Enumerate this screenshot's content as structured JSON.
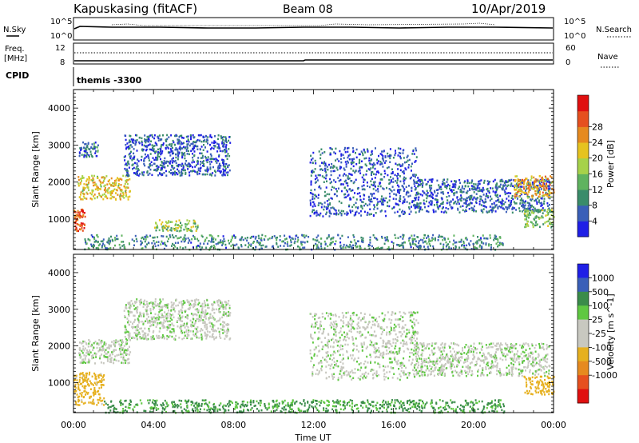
{
  "header": {
    "title": "Kapuskasing (fitACF)",
    "beam": "Beam 08",
    "date": "10/Apr/2019"
  },
  "noise_panel": {
    "left_label": "N.Sky",
    "right_label": "N.Search",
    "tick_top": "10^5",
    "tick_bottom": "10^0",
    "right_tick_top": "10^5",
    "right_tick_bottom": "10^0"
  },
  "freq_panel": {
    "left_label_line1": "Freq.",
    "left_label_line2": "[MHz]",
    "left_tick_top": "12",
    "left_tick_bottom": "8",
    "right_label": "Nave",
    "right_tick_top": "60",
    "right_tick_bottom": "0"
  },
  "cpid_panel": {
    "label": "CPID",
    "value": "themis -3300"
  },
  "colors": {
    "power": [
      "#1f1fe6",
      "#3a5fb8",
      "#3a8c6a",
      "#5fb35f",
      "#a6d24a",
      "#e6c31f",
      "#e68a1f",
      "#e6501f",
      "#e01010"
    ],
    "velocity": [
      "#e01010",
      "#e6501f",
      "#e68a1f",
      "#e6b01f",
      "#c8c8c0",
      "#c8c8c0",
      "#5fc842",
      "#3a8c4a",
      "#3a5fb8",
      "#1f1fe6"
    ]
  },
  "chart_data": [
    {
      "type": "heatmap",
      "name": "power",
      "xlabel": "",
      "ylabel": "Slant Range [km]",
      "xlim": [
        "00:00",
        "24:00"
      ],
      "ylim": [
        180,
        4500
      ],
      "y_ticks": [
        "1000",
        "2000",
        "3000",
        "4000"
      ],
      "colorbar_label": "Power [dB]",
      "colorbar_ticks": [
        "4",
        "8",
        "12",
        "16",
        "20",
        "24",
        "28"
      ],
      "colorbar_range": [
        0,
        30
      ],
      "echo_regions": [
        {
          "t_start": 0.2,
          "t_end": 2.8,
          "range_start": 1550,
          "range_end": 2200,
          "level_db": 18
        },
        {
          "t_start": 0.2,
          "t_end": 1.2,
          "range_start": 2700,
          "range_end": 3100,
          "level_db": 6
        },
        {
          "t_start": 2.5,
          "t_end": 7.8,
          "range_start": 2200,
          "range_end": 3300,
          "level_db": 5
        },
        {
          "t_start": 0.0,
          "t_end": 0.6,
          "range_start": 700,
          "range_end": 1300,
          "level_db": 26
        },
        {
          "t_start": 0.5,
          "t_end": 21.5,
          "range_start": 200,
          "range_end": 600,
          "level_db": 8
        },
        {
          "t_start": 4.0,
          "t_end": 6.2,
          "range_start": 700,
          "range_end": 1000,
          "level_db": 14
        },
        {
          "t_start": 11.8,
          "t_end": 17.2,
          "range_start": 1100,
          "range_end": 2950,
          "level_db": 5
        },
        {
          "t_start": 17.0,
          "t_end": 23.8,
          "range_start": 1200,
          "range_end": 2100,
          "level_db": 5
        },
        {
          "t_start": 22.0,
          "t_end": 24.0,
          "range_start": 1600,
          "range_end": 2200,
          "level_db": 20
        },
        {
          "t_start": 22.5,
          "t_end": 24.0,
          "range_start": 800,
          "range_end": 1300,
          "level_db": 12
        }
      ]
    },
    {
      "type": "heatmap",
      "name": "velocity",
      "xlabel": "Time UT",
      "ylabel": "Slant Range [km]",
      "xlim": [
        "00:00",
        "24:00"
      ],
      "x_ticks": [
        "00:00",
        "04:00",
        "08:00",
        "12:00",
        "16:00",
        "20:00",
        "00:00"
      ],
      "ylim": [
        180,
        4500
      ],
      "y_ticks": [
        "1000",
        "2000",
        "3000",
        "4000"
      ],
      "colorbar_label": "Velocity [m s^-1]",
      "colorbar_ticks": [
        "1000",
        "500",
        "100",
        "25",
        "-25",
        "-100",
        "-500",
        "-1000"
      ],
      "echo_regions": [
        {
          "t_start": 0.2,
          "t_end": 2.8,
          "range_start": 1550,
          "range_end": 2200,
          "velocity": 0
        },
        {
          "t_start": 2.5,
          "t_end": 7.8,
          "range_start": 2200,
          "range_end": 3300,
          "velocity": 0
        },
        {
          "t_start": 0.0,
          "t_end": 1.5,
          "range_start": 400,
          "range_end": 1300,
          "velocity": -150
        },
        {
          "t_start": 1.5,
          "t_end": 21.5,
          "range_start": 200,
          "range_end": 550,
          "velocity": 120
        },
        {
          "t_start": 11.8,
          "t_end": 17.2,
          "range_start": 1100,
          "range_end": 2950,
          "velocity": 0
        },
        {
          "t_start": 17.0,
          "t_end": 23.8,
          "range_start": 1200,
          "range_end": 2100,
          "velocity": 0
        },
        {
          "t_start": 22.5,
          "t_end": 24.0,
          "range_start": 700,
          "range_end": 1200,
          "velocity": -200
        }
      ]
    }
  ]
}
